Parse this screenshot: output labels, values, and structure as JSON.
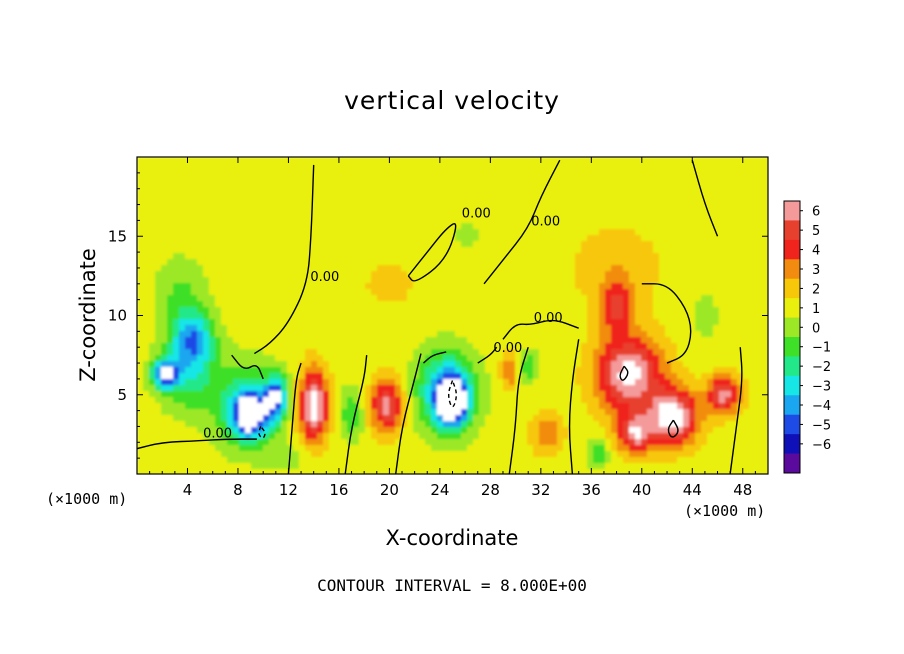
{
  "chart_data": {
    "type": "heatmap",
    "title": "vertical velocity",
    "xlabel": "X-coordinate",
    "ylabel": "Z-coordinate",
    "x_unit_left": "(×1000 m)",
    "x_unit_right": "(×1000 m)",
    "footer": "CONTOUR INTERVAL = 8.000E+00",
    "xlim": [
      0,
      50
    ],
    "ylim": [
      0,
      20
    ],
    "x_ticks": [
      4,
      8,
      12,
      16,
      20,
      24,
      28,
      32,
      36,
      40,
      44,
      48
    ],
    "x_tick_labels": [
      "4",
      "8",
      "12",
      "16",
      "20",
      "24",
      "28",
      "32",
      "36",
      "40",
      "44",
      "48"
    ],
    "y_ticks": [
      5,
      10,
      15
    ],
    "y_tick_labels": [
      "5",
      "10",
      "15"
    ],
    "colorbar": {
      "ticks": [
        6,
        5,
        4,
        3,
        2,
        1,
        0,
        -1,
        -2,
        -3,
        -4,
        -5,
        -6
      ],
      "tick_labels": [
        "6",
        "5",
        "4",
        "3",
        "2",
        "1",
        "0",
        "−1",
        "−2",
        "−3",
        "−4",
        "−5",
        "−6"
      ],
      "colors": [
        "#f49a9a",
        "#e8402f",
        "#f0241c",
        "#f28c10",
        "#f7c70a",
        "#eaf00e",
        "#9ce826",
        "#3ee028",
        "#22e889",
        "#16e6e6",
        "#1aa6f0",
        "#1e4ae6",
        "#1010b8",
        "#5a0a9c"
      ]
    },
    "background_value": 0.5,
    "features": [
      {
        "x": 4.5,
        "z": 8.5,
        "sx": 1.6,
        "sz": 1.6,
        "w": -4.5
      },
      {
        "x": 4,
        "z": 6.2,
        "sx": 2.2,
        "sz": 2.2,
        "w": -3
      },
      {
        "x": 2.2,
        "z": 6.3,
        "sx": 1.0,
        "sz": 0.9,
        "w": -6
      },
      {
        "x": 8.5,
        "z": 4.3,
        "sx": 2.4,
        "sz": 2.6,
        "w": -3.5
      },
      {
        "x": 9.0,
        "z": 3.7,
        "sx": 1.3,
        "sz": 1.4,
        "w": -6.5
      },
      {
        "x": 3.5,
        "z": 11,
        "sx": 2.0,
        "sz": 2.5,
        "w": -1.8
      },
      {
        "x": 11,
        "z": 4.8,
        "sx": 0.9,
        "sz": 1.4,
        "w": -6
      },
      {
        "x": 14,
        "z": 4.3,
        "sx": 1.1,
        "sz": 2.2,
        "w": 6.5
      },
      {
        "x": 17,
        "z": 3.8,
        "sx": 0.9,
        "sz": 1.6,
        "w": -2.5
      },
      {
        "x": 19.8,
        "z": 4.3,
        "sx": 1.3,
        "sz": 1.6,
        "w": 5
      },
      {
        "x": 24.5,
        "z": 5.2,
        "sx": 2.3,
        "sz": 2.5,
        "w": -5
      },
      {
        "x": 25,
        "z": 4.6,
        "sx": 1.2,
        "sz": 1.5,
        "w": -7
      },
      {
        "x": 29.5,
        "z": 6.5,
        "sx": 0.7,
        "sz": 1.2,
        "w": 2.5
      },
      {
        "x": 31,
        "z": 6.8,
        "sx": 0.7,
        "sz": 1.0,
        "w": -2.5
      },
      {
        "x": 32.5,
        "z": 2.5,
        "sx": 1.2,
        "sz": 1.2,
        "w": 2.5
      },
      {
        "x": 39,
        "z": 6.3,
        "sx": 2.6,
        "sz": 2.4,
        "w": 6
      },
      {
        "x": 42.5,
        "z": 3.6,
        "sx": 1.9,
        "sz": 1.7,
        "w": 6.5
      },
      {
        "x": 39.5,
        "z": 2.5,
        "sx": 1.4,
        "sz": 1.2,
        "w": 5
      },
      {
        "x": 46.5,
        "z": 5,
        "sx": 1.3,
        "sz": 1.2,
        "w": 5
      },
      {
        "x": 38,
        "z": 10.5,
        "sx": 1.3,
        "sz": 1.5,
        "w": 3.5
      },
      {
        "x": 36.5,
        "z": 1.3,
        "sx": 0.8,
        "sz": 0.8,
        "w": -2.5
      },
      {
        "x": 20,
        "z": 12,
        "sx": 4.0,
        "sz": 3.0,
        "w": 0.6
      },
      {
        "x": 38,
        "z": 13,
        "sx": 3.5,
        "sz": 2.5,
        "w": 1.3
      },
      {
        "x": 26,
        "z": 15,
        "sx": 2.5,
        "sz": 2.0,
        "w": -0.6
      },
      {
        "x": 12,
        "z": 1.0,
        "sx": 2.0,
        "sz": 1.0,
        "w": -0.8
      },
      {
        "x": 45,
        "z": 10,
        "sx": 1.5,
        "sz": 2.0,
        "w": -0.8
      }
    ],
    "contours": [
      {
        "label": "0.00",
        "dashed": false,
        "points": [
          [
            0,
            1.6
          ],
          [
            2,
            2
          ],
          [
            5,
            2.1
          ],
          [
            7,
            2.2
          ],
          [
            9.5,
            2.2
          ]
        ]
      },
      {
        "label": "",
        "dashed": false,
        "points": [
          [
            7.5,
            7.5
          ],
          [
            8.5,
            6.5
          ],
          [
            9.5,
            7
          ],
          [
            10,
            6
          ]
        ]
      },
      {
        "label": "0.00",
        "dashed": false,
        "points": [
          [
            9.3,
            7.6
          ],
          [
            10.5,
            8.2
          ],
          [
            12,
            9.5
          ],
          [
            13.5,
            12
          ],
          [
            13.8,
            15
          ],
          [
            14,
            19.5
          ]
        ]
      },
      {
        "label": "",
        "dashed": false,
        "points": [
          [
            12,
            0
          ],
          [
            12.3,
            3
          ],
          [
            12.6,
            6
          ],
          [
            13,
            7
          ]
        ]
      },
      {
        "label": "",
        "dashed": false,
        "points": [
          [
            16.5,
            0
          ],
          [
            17,
            3
          ],
          [
            18,
            6
          ],
          [
            18.2,
            7.5
          ]
        ]
      },
      {
        "label": "",
        "dashed": false,
        "points": [
          [
            20.5,
            0
          ],
          [
            21,
            3
          ],
          [
            22,
            6
          ],
          [
            22.5,
            7.6
          ]
        ]
      },
      {
        "label": "",
        "dashed": false,
        "points": [
          [
            22.7,
            7
          ],
          [
            23.4,
            7.5
          ],
          [
            24.5,
            7.7
          ]
        ]
      },
      {
        "label": "0.00",
        "dashed": false,
        "points": [
          [
            27,
            7
          ],
          [
            28,
            7.5
          ],
          [
            28.5,
            8
          ]
        ]
      },
      {
        "label": "0.00",
        "dashed": false,
        "points": [
          [
            29,
            8.5
          ],
          [
            30,
            9.5
          ],
          [
            31.2,
            9.4
          ],
          [
            33,
            9.8
          ],
          [
            35,
            9.2
          ]
        ]
      },
      {
        "label": "0.00",
        "dashed": false,
        "points": [
          [
            27.5,
            12
          ],
          [
            29,
            13.5
          ],
          [
            31,
            15.5
          ],
          [
            32,
            17.5
          ],
          [
            33.5,
            19.8
          ]
        ]
      },
      {
        "label": "0.00",
        "dashed": false,
        "points": [
          [
            21.5,
            12.5
          ],
          [
            23,
            14
          ],
          [
            24.5,
            15.5
          ],
          [
            25.5,
            16
          ],
          [
            24.5,
            13.5
          ],
          [
            22,
            12
          ],
          [
            21.5,
            12.5
          ]
        ]
      },
      {
        "label": "",
        "dashed": false,
        "points": [
          [
            29.5,
            0
          ],
          [
            30,
            3
          ],
          [
            30.2,
            6
          ],
          [
            31,
            8
          ]
        ]
      },
      {
        "label": "",
        "dashed": false,
        "points": [
          [
            34.5,
            0
          ],
          [
            34.2,
            3
          ],
          [
            34.5,
            6
          ],
          [
            35,
            8.5
          ]
        ]
      },
      {
        "label": "",
        "dashed": false,
        "points": [
          [
            47,
            0
          ],
          [
            47.5,
            3
          ],
          [
            48,
            6
          ],
          [
            47.8,
            8
          ]
        ]
      },
      {
        "label": "",
        "dashed": false,
        "points": [
          [
            40,
            12
          ],
          [
            42,
            12
          ],
          [
            43.5,
            10.5
          ],
          [
            44,
            9
          ],
          [
            43.5,
            7.5
          ],
          [
            42,
            7
          ]
        ]
      },
      {
        "label": "",
        "dashed": false,
        "points": [
          [
            44,
            19.8
          ],
          [
            45,
            17
          ],
          [
            46,
            15
          ]
        ]
      },
      {
        "label": "",
        "dashed": false,
        "points": [
          [
            38.6,
            6.8
          ],
          [
            38.2,
            6.2
          ],
          [
            38.5,
            5.8
          ],
          [
            39,
            6.4
          ],
          [
            38.6,
            6.8
          ]
        ]
      },
      {
        "label": "",
        "dashed": false,
        "points": [
          [
            42.5,
            3.4
          ],
          [
            42,
            2.8
          ],
          [
            42.4,
            2.2
          ],
          [
            43,
            2.7
          ],
          [
            42.5,
            3.4
          ]
        ]
      },
      {
        "label": "",
        "dashed": true,
        "points": [
          [
            25,
            5.9
          ],
          [
            24.6,
            5
          ],
          [
            25,
            4
          ],
          [
            25.4,
            5
          ],
          [
            25,
            5.9
          ]
        ]
      },
      {
        "label": "",
        "dashed": true,
        "points": [
          [
            9.8,
            3
          ],
          [
            9.6,
            2.5
          ],
          [
            10,
            2.2
          ],
          [
            10.2,
            2.6
          ],
          [
            9.8,
            3
          ]
        ]
      }
    ]
  }
}
